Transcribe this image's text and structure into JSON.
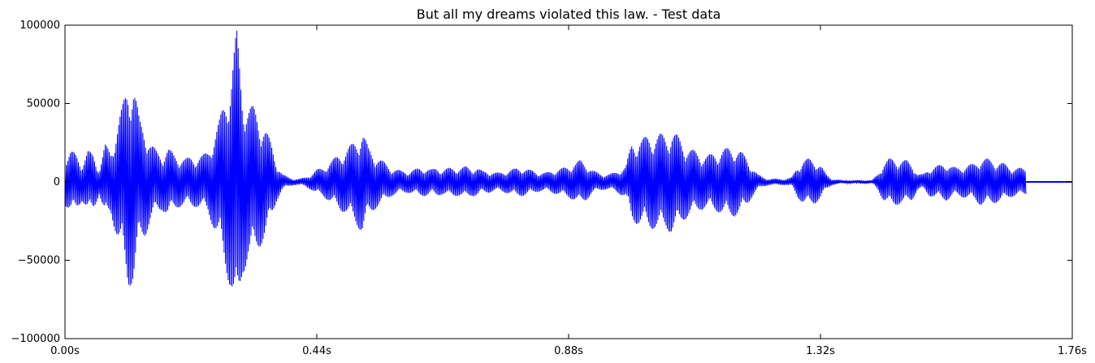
{
  "chart_data": {
    "type": "line",
    "title": "But all my dreams violated this law. - Test data",
    "xlabel": "",
    "ylabel": "",
    "xlim": [
      0,
      1.76
    ],
    "ylim": [
      -100000,
      100000
    ],
    "x_ticks": [
      {
        "value": 0.0,
        "label": "0.00s"
      },
      {
        "value": 0.44,
        "label": "0.44s"
      },
      {
        "value": 0.88,
        "label": "0.88s"
      },
      {
        "value": 1.32,
        "label": "1.32s"
      },
      {
        "value": 1.76,
        "label": "1.76s"
      }
    ],
    "y_ticks": [
      {
        "value": 100000,
        "label": "100000"
      },
      {
        "value": 50000,
        "label": "50000"
      },
      {
        "value": 0,
        "label": "0"
      },
      {
        "value": -50000,
        "label": "−50000"
      },
      {
        "value": -100000,
        "label": "−100000"
      }
    ],
    "grid": false,
    "line_color": "#0000ff",
    "series": [
      {
        "values_format": "[time_s, amplitude]",
        "x": [
          0.0,
          0.01,
          0.02,
          0.03,
          0.04,
          0.05,
          0.06,
          0.07,
          0.08,
          0.09,
          0.1,
          0.11,
          0.12,
          0.13,
          0.14,
          0.15,
          0.16,
          0.17,
          0.18,
          0.19,
          0.2,
          0.21,
          0.22,
          0.23,
          0.24,
          0.25,
          0.26,
          0.27,
          0.28,
          0.29,
          0.3,
          0.31,
          0.32,
          0.33,
          0.34,
          0.35,
          0.36,
          0.37,
          0.38,
          0.39,
          0.4,
          0.41,
          0.42,
          0.43,
          0.44,
          0.45,
          0.46,
          0.47,
          0.48,
          0.49,
          0.5,
          0.51,
          0.52,
          0.53,
          0.54,
          0.55,
          0.56,
          0.57,
          0.58,
          0.59,
          0.6,
          0.61,
          0.62,
          0.63,
          0.64,
          0.65,
          0.66,
          0.67,
          0.68,
          0.69,
          0.7,
          0.71,
          0.72,
          0.73,
          0.74,
          0.75,
          0.76,
          0.77,
          0.78,
          0.79,
          0.8,
          0.81,
          0.82,
          0.83,
          0.84,
          0.85,
          0.86,
          0.87,
          0.88,
          0.89,
          0.9,
          0.91,
          0.92,
          0.93,
          0.94,
          0.95,
          0.96,
          0.97,
          0.98,
          0.99,
          1.0,
          1.01,
          1.02,
          1.03,
          1.04,
          1.05,
          1.06,
          1.07,
          1.08,
          1.09,
          1.1,
          1.11,
          1.12,
          1.13,
          1.14,
          1.15,
          1.16,
          1.17,
          1.18,
          1.19,
          1.2,
          1.21,
          1.22,
          1.23,
          1.24,
          1.25,
          1.26,
          1.27,
          1.28,
          1.29,
          1.3,
          1.31,
          1.32,
          1.33,
          1.34,
          1.35,
          1.36,
          1.37,
          1.38,
          1.39,
          1.4,
          1.41,
          1.42,
          1.43,
          1.44,
          1.45,
          1.46,
          1.47,
          1.48,
          1.49,
          1.5,
          1.51,
          1.52,
          1.53,
          1.54,
          1.55,
          1.56,
          1.57,
          1.58,
          1.59,
          1.6,
          1.61,
          1.62,
          1.63,
          1.64,
          1.65,
          1.66,
          1.67,
          1.68,
          1.69,
          1.7,
          1.71,
          1.72,
          1.73,
          1.74,
          1.75,
          1.76
        ],
        "envelope": [
          15000,
          20000,
          18000,
          12000,
          20000,
          18000,
          8000,
          24000,
          20000,
          35000,
          48000,
          67000,
          65000,
          40000,
          35000,
          25000,
          20000,
          18000,
          22000,
          18000,
          16000,
          15000,
          16000,
          16000,
          17000,
          20000,
          30000,
          40000,
          55000,
          70000,
          98000,
          60000,
          50000,
          48000,
          42000,
          35000,
          25000,
          12000,
          5000,
          3000,
          2000,
          2000,
          3000,
          5000,
          8000,
          9000,
          12000,
          15000,
          18000,
          20000,
          24000,
          28000,
          33000,
          22000,
          18000,
          15000,
          12000,
          9000,
          8000,
          7000,
          7000,
          8000,
          9000,
          9000,
          8000,
          9000,
          8000,
          9000,
          9000,
          9000,
          10000,
          9000,
          9000,
          7000,
          7000,
          6000,
          6000,
          7000,
          8000,
          9000,
          9000,
          8000,
          7000,
          6000,
          6000,
          7000,
          8000,
          9000,
          10000,
          12000,
          14000,
          12000,
          8000,
          6000,
          5000,
          5000,
          6000,
          8000,
          10000,
          25000,
          27000,
          28000,
          30000,
          30000,
          31000,
          30000,
          33000,
          30000,
          25000,
          22000,
          20000,
          18000,
          17000,
          18000,
          19000,
          21000,
          22000,
          22000,
          20000,
          16000,
          10000,
          5000,
          3000,
          2000,
          2000,
          2000,
          2000,
          3000,
          10000,
          14000,
          15000,
          14000,
          11000,
          5000,
          2000,
          1500,
          1000,
          1000,
          1000,
          1200,
          1200,
          1000,
          5000,
          12000,
          15000,
          15000,
          14000,
          14000,
          12000,
          5000,
          5000,
          9000,
          10000,
          11000,
          12000,
          10000,
          9000,
          10000,
          11000,
          12000,
          15000,
          15000,
          14000,
          13000,
          12000,
          10000,
          9000,
          9000,
          8000
        ]
      }
    ]
  }
}
